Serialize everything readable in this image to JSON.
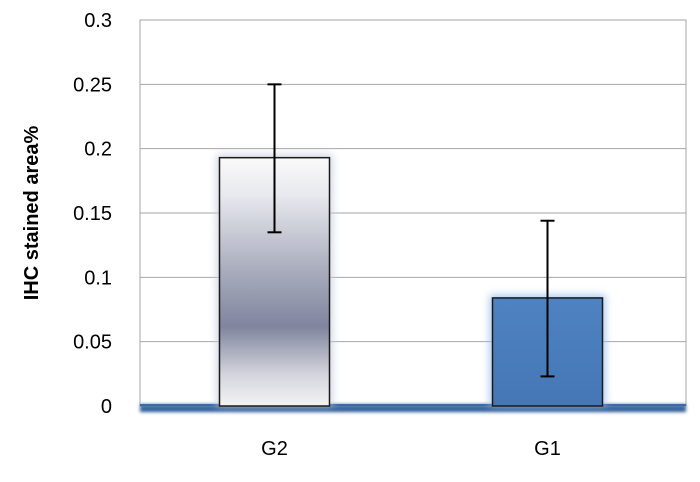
{
  "chart_data": {
    "type": "bar",
    "title": "",
    "xlabel": "",
    "ylabel": "IHC stained area%",
    "categories": [
      "G2",
      "G1"
    ],
    "values": [
      0.193,
      0.084
    ],
    "error_upper": [
      0.25,
      0.144
    ],
    "error_lower": [
      0.135,
      0.023
    ],
    "ylim": [
      0,
      0.3
    ],
    "yticks": [
      0,
      0.05,
      0.1,
      0.15,
      0.2,
      0.25,
      0.3
    ],
    "ytick_labels": [
      "0",
      "0.05",
      "0.1",
      "0.15",
      "0.2",
      "0.25",
      "0.3"
    ],
    "grid": true,
    "legend": "none",
    "bar_colors": [
      "#8a8fa8",
      "#4f81bd"
    ],
    "bar_styles": [
      "silver-gradient",
      "blue-gradient"
    ]
  }
}
